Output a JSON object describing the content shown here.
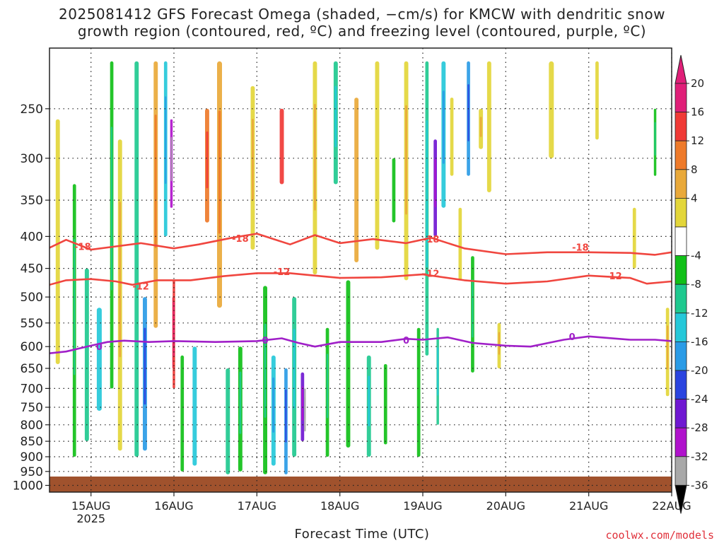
{
  "title_line1": "2025081412 GFS Forecast Omega (shaded, −cm/s) for KMCW with dendritic snow",
  "title_line2": "growth region (contoured, red, ºC) and freezing level (contoured, purple, ºC)",
  "credit": "coolwx.com/models",
  "chart_data": {
    "type": "heatmap",
    "title": "2025081412 GFS Forecast Omega (shaded, −cm/s) for KMCW with dendritic snow growth region (contoured, red, ºC) and freezing level (contoured, purple, ºC)",
    "xlabel": "Forecast Time (UTC)",
    "ylabel": "",
    "x_ticks": [
      "15AUG",
      "16AUG",
      "17AUG",
      "18AUG",
      "19AUG",
      "20AUG",
      "21AUG",
      "22AUG"
    ],
    "x_tick_sub": {
      "15AUG": "2025"
    },
    "x_range_days": [
      14.5,
      22.0
    ],
    "y_ticks": [
      250,
      300,
      350,
      400,
      450,
      500,
      550,
      600,
      650,
      700,
      750,
      800,
      850,
      900,
      950,
      1000
    ],
    "y_range_hpa": [
      200,
      1025
    ],
    "y_scale": "log",
    "grid": true,
    "colorbar": {
      "labels": [
        "20",
        "16",
        "12",
        "8",
        "4",
        "-4",
        "-8",
        "-12",
        "-16",
        "-20",
        "-24",
        "-28",
        "-32",
        "-36"
      ],
      "bins": [
        {
          "low": 20,
          "high": 24,
          "color": "#e01f78"
        },
        {
          "low": 16,
          "high": 20,
          "color": "#f03a36"
        },
        {
          "low": 12,
          "high": 16,
          "color": "#ee7a2a"
        },
        {
          "low": 8,
          "high": 12,
          "color": "#e9a93a"
        },
        {
          "low": 4,
          "high": 8,
          "color": "#e3d63a"
        },
        {
          "low": -4,
          "high": 4,
          "color": "#ffffff"
        },
        {
          "low": -8,
          "high": -4,
          "color": "#11c018"
        },
        {
          "low": -12,
          "high": -8,
          "color": "#1fc98f"
        },
        {
          "low": -16,
          "high": -12,
          "color": "#25c8d9"
        },
        {
          "low": -20,
          "high": -16,
          "color": "#2a9be6"
        },
        {
          "low": -24,
          "high": -20,
          "color": "#2a44e0"
        },
        {
          "low": -28,
          "high": -24,
          "color": "#7018d2"
        },
        {
          "low": -32,
          "high": -28,
          "color": "#b012cc"
        },
        {
          "low": -36,
          "high": -32,
          "color": "#a8a8a8"
        }
      ],
      "extend_top_color": "#e01f78",
      "extend_bottom_color": "#000000"
    },
    "ground_color": "#a0522d",
    "contours": [
      {
        "label": "-18",
        "color": "#f0463f",
        "points": [
          [
            14.5,
            417
          ],
          [
            14.7,
            405
          ],
          [
            15.0,
            420
          ],
          [
            15.3,
            415
          ],
          [
            15.6,
            410
          ],
          [
            16.0,
            418
          ],
          [
            16.3,
            412
          ],
          [
            16.7,
            402
          ],
          [
            17.0,
            396
          ],
          [
            17.4,
            412
          ],
          [
            17.7,
            398
          ],
          [
            18.0,
            410
          ],
          [
            18.4,
            404
          ],
          [
            18.8,
            410
          ],
          [
            19.1,
            402
          ],
          [
            19.5,
            418
          ],
          [
            20.0,
            427
          ],
          [
            20.5,
            424
          ],
          [
            21.0,
            424
          ],
          [
            21.5,
            425
          ],
          [
            21.8,
            428
          ],
          [
            22.0,
            424
          ]
        ],
        "label_at": [
          [
            14.9,
            415
          ],
          [
            16.8,
            403
          ],
          [
            19.1,
            404
          ],
          [
            20.9,
            416
          ]
        ]
      },
      {
        "label": "-12",
        "color": "#f0463f",
        "points": [
          [
            14.5,
            478
          ],
          [
            14.7,
            470
          ],
          [
            15.0,
            468
          ],
          [
            15.3,
            472
          ],
          [
            15.5,
            478
          ],
          [
            15.8,
            470
          ],
          [
            16.2,
            470
          ],
          [
            16.6,
            463
          ],
          [
            17.0,
            458
          ],
          [
            17.4,
            458
          ],
          [
            17.7,
            462
          ],
          [
            18.0,
            466
          ],
          [
            18.5,
            465
          ],
          [
            19.0,
            460
          ],
          [
            19.5,
            470
          ],
          [
            20.0,
            476
          ],
          [
            20.5,
            472
          ],
          [
            21.0,
            462
          ],
          [
            21.5,
            466
          ],
          [
            21.7,
            476
          ],
          [
            22.0,
            472
          ]
        ],
        "label_at": [
          [
            15.6,
            480
          ],
          [
            17.3,
            455
          ],
          [
            19.1,
            458
          ],
          [
            21.3,
            462
          ]
        ]
      },
      {
        "label": "0",
        "color": "#a020c8",
        "points": [
          [
            14.5,
            615
          ],
          [
            14.7,
            611
          ],
          [
            15.0,
            598
          ],
          [
            15.2,
            590
          ],
          [
            15.4,
            587
          ],
          [
            15.7,
            590
          ],
          [
            16.0,
            588
          ],
          [
            16.5,
            590
          ],
          [
            17.0,
            588
          ],
          [
            17.3,
            582
          ],
          [
            17.5,
            592
          ],
          [
            17.7,
            600
          ],
          [
            18.0,
            590
          ],
          [
            18.5,
            590
          ],
          [
            18.8,
            583
          ],
          [
            19.0,
            585
          ],
          [
            19.3,
            580
          ],
          [
            19.6,
            592
          ],
          [
            20.0,
            598
          ],
          [
            20.3,
            600
          ],
          [
            20.7,
            585
          ],
          [
            21.0,
            578
          ],
          [
            21.5,
            585
          ],
          [
            21.8,
            585
          ],
          [
            22.0,
            588
          ]
        ],
        "label_at": [
          [
            15.1,
            600
          ],
          [
            17.1,
            586
          ],
          [
            18.8,
            586
          ],
          [
            20.8,
            578
          ]
        ]
      }
    ]
  }
}
